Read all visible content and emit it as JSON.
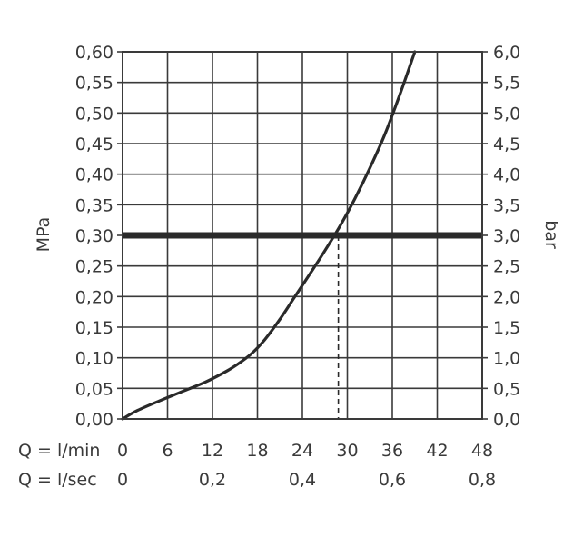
{
  "chart_data": {
    "type": "line",
    "title": "",
    "ylabel_left": "MPa",
    "ylabel_right": "bar",
    "x_rows": [
      {
        "label": "Q = l/min",
        "ticks": [
          "0",
          "6",
          "12",
          "18",
          "24",
          "30",
          "36",
          "42",
          "48"
        ],
        "tick_values": [
          0,
          6,
          12,
          18,
          24,
          30,
          36,
          42,
          48
        ]
      },
      {
        "label": "Q = l/sec",
        "ticks": [
          "0",
          "0,2",
          "0,4",
          "0,6",
          "0,8"
        ],
        "tick_values": [
          0,
          0.2,
          0.4,
          0.6,
          0.8
        ]
      }
    ],
    "xlim": [
      0,
      48
    ],
    "ylim_left": [
      0,
      0.6
    ],
    "ylim_right": [
      0,
      6
    ],
    "y_ticks_left": [
      "0,00",
      "0,05",
      "0,10",
      "0,15",
      "0,20",
      "0,25",
      "0,30",
      "0,35",
      "0,40",
      "0,45",
      "0,50",
      "0,55",
      "0,60"
    ],
    "y_ticks_right": [
      "0,0",
      "0,5",
      "1,0",
      "1,5",
      "2,0",
      "2,5",
      "3,0",
      "3,5",
      "4,0",
      "4,5",
      "5,0",
      "5,5",
      "6,0"
    ],
    "grid": true,
    "series": [
      {
        "x": [
          0,
          2,
          5,
          8,
          11,
          14,
          16,
          17.5,
          19,
          21,
          23,
          25,
          27,
          29,
          31,
          33,
          35,
          37,
          39
        ],
        "y": [
          0,
          0.014,
          0.03,
          0.045,
          0.06,
          0.079,
          0.095,
          0.11,
          0.13,
          0.163,
          0.2,
          0.237,
          0.275,
          0.315,
          0.36,
          0.41,
          0.465,
          0.53,
          0.6
        ]
      }
    ],
    "reference_line": {
      "y": 0.3
    },
    "operating_point": {
      "x": 28.8,
      "y": 0.3
    },
    "colors": {
      "curve": "#2a2a2a",
      "grid": "#3a3a3a",
      "text": "#3a3a3a"
    }
  }
}
